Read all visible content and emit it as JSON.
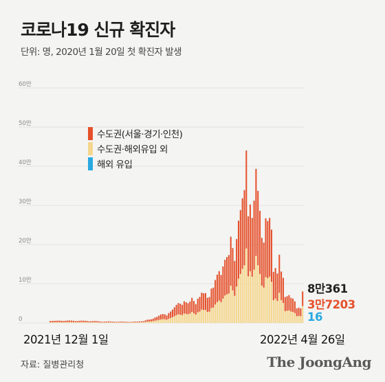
{
  "title": "코로나19 신규 확진자",
  "subtitle": "단위: 명, 2020년 1월 20일 첫 확진자 발생",
  "source": "자료: 질병관리청",
  "logo": "The JoongAng",
  "colors": {
    "capital": "#e5502b",
    "non_capital": "#f5d68c",
    "overseas": "#29a9e0",
    "grid": "#cfcfcf",
    "tick": "#888888"
  },
  "chart_data": {
    "type": "bar",
    "stacked": true,
    "x_start_label": "2021년 12월 1일",
    "x_end_label": "2022년 4월 26일",
    "ylim": [
      0,
      600000
    ],
    "yticks": [
      {
        "value": 0,
        "label": "0"
      },
      {
        "value": 100000,
        "label": "10만"
      },
      {
        "value": 200000,
        "label": "20만"
      },
      {
        "value": 300000,
        "label": "30만"
      },
      {
        "value": 400000,
        "label": "40만"
      },
      {
        "value": 500000,
        "label": "50만"
      },
      {
        "value": 600000,
        "label": "60만"
      }
    ],
    "grid": true,
    "legend_position": "top-left",
    "legend": [
      {
        "label": "수도권(서울·경기·인천)",
        "color_key": "capital"
      },
      {
        "label": "수도권·해외유입 외",
        "color_key": "non_capital"
      },
      {
        "label": "해외 유입",
        "color_key": "overseas"
      }
    ],
    "series": [
      {
        "name": "수도권(서울·경기·인천)",
        "color_key": "capital",
        "values": [
          3200,
          3500,
          3600,
          3700,
          3900,
          3700,
          3400,
          3300,
          3600,
          4000,
          4100,
          3800,
          3500,
          3000,
          2900,
          3400,
          3700,
          3600,
          3400,
          3100,
          2700,
          2600,
          2900,
          3100,
          2900,
          2600,
          2200,
          1900,
          2000,
          2200,
          2400,
          2300,
          2100,
          1900,
          1600,
          1700,
          2000,
          2100,
          1900,
          1800,
          1600,
          1500,
          1600,
          1900,
          2000,
          2000,
          2100,
          2200,
          2600,
          3700,
          5000,
          5000,
          5500,
          6500,
          8200,
          9000,
          11000,
          12700,
          13000,
          12800,
          11000,
          14500,
          16500,
          19500,
          22800,
          26000,
          28500,
          28000,
          26000,
          31000,
          29700,
          28200,
          30700,
          36000,
          31400,
          27000,
          34700,
          37400,
          43100,
          42500,
          43100,
          36000,
          37000,
          49600,
          51000,
          62500,
          70000,
          75000,
          69000,
          82000,
          91000,
          95000,
          98000,
          125000,
          108000,
          89000,
          121000,
          148000,
          163000,
          180000,
          192000,
          250000,
          153000,
          170000,
          150000,
          176000,
          222000,
          190000,
          161000,
          122000,
          115000,
          150000,
          146000,
          150000,
          133000,
          72000,
          78000,
          70000,
          97000,
          73000,
          64000,
          36000,
          37000,
          39000,
          35000,
          34000,
          30000,
          20000,
          21000,
          20000,
          37203
        ]
      },
      {
        "name": "수도권·해외유입 외",
        "color_key": "non_capital",
        "values": [
          1500,
          1600,
          1700,
          1800,
          2000,
          1900,
          1700,
          1700,
          1800,
          2100,
          2200,
          2100,
          1900,
          1700,
          1800,
          2000,
          2100,
          2100,
          2000,
          1800,
          1600,
          1500,
          1700,
          1800,
          1700,
          1500,
          1300,
          1100,
          1200,
          1400,
          1500,
          1400,
          1300,
          1100,
          1000,
          1100,
          1200,
          1300,
          1200,
          1100,
          1000,
          900,
          1100,
          1300,
          1400,
          1500,
          1600,
          1700,
          1900,
          2600,
          3200,
          3500,
          3700,
          4400,
          5700,
          6500,
          7500,
          8700,
          9500,
          9300,
          8000,
          10500,
          12500,
          14500,
          17000,
          20000,
          22000,
          21000,
          20000,
          24000,
          23000,
          22000,
          24000,
          28000,
          24500,
          21000,
          27000,
          29000,
          34000,
          33000,
          33000,
          28000,
          29000,
          38000,
          39000,
          47000,
          53000,
          57000,
          53000,
          62000,
          70000,
          73000,
          75000,
          95000,
          83000,
          69000,
          93000,
          113000,
          125000,
          138000,
          147000,
          190000,
          119000,
          132000,
          118000,
          136000,
          171000,
          147000,
          125000,
          95000,
          90000,
          117000,
          114000,
          118000,
          105000,
          58000,
          62000,
          56000,
          77000,
          58000,
          51000,
          30000,
          31000,
          32000,
          29000,
          28000,
          25000,
          17000,
          18000,
          17000,
          43142
        ]
      },
      {
        "name": "해외 유입",
        "color_key": "overseas",
        "values": [
          60,
          55,
          50,
          60,
          65,
          55,
          50,
          60,
          58,
          62,
          55,
          60,
          50,
          48,
          55,
          58,
          60,
          52,
          55,
          50,
          45,
          48,
          52,
          55,
          50,
          45,
          40,
          38,
          42,
          45,
          48,
          46,
          44,
          40,
          38,
          40,
          42,
          44,
          42,
          40,
          38,
          36,
          40,
          42,
          44,
          46,
          48,
          50,
          55,
          62,
          70,
          75,
          80,
          90,
          100,
          110,
          120,
          130,
          140,
          135,
          130,
          140,
          150,
          160,
          170,
          180,
          190,
          185,
          180,
          195,
          190,
          185,
          195,
          205,
          200,
          190,
          210,
          220,
          230,
          225,
          230,
          210,
          215,
          240,
          245,
          260,
          270,
          280,
          270,
          290,
          300,
          310,
          320,
          350,
          330,
          300,
          340,
          370,
          390,
          410,
          420,
          480,
          380,
          400,
          370,
          410,
          460,
          420,
          380,
          320,
          300,
          360,
          350,
          360,
          330,
          220,
          230,
          210,
          260,
          220,
          200,
          140,
          140,
          145,
          135,
          130,
          120,
          90,
          90,
          85,
          16
        ]
      }
    ],
    "annotations": [
      {
        "label": "8만361",
        "color_key": "total"
      },
      {
        "label": "3만7203",
        "color_key": "capital"
      },
      {
        "label": "16",
        "color_key": "overseas"
      }
    ]
  }
}
